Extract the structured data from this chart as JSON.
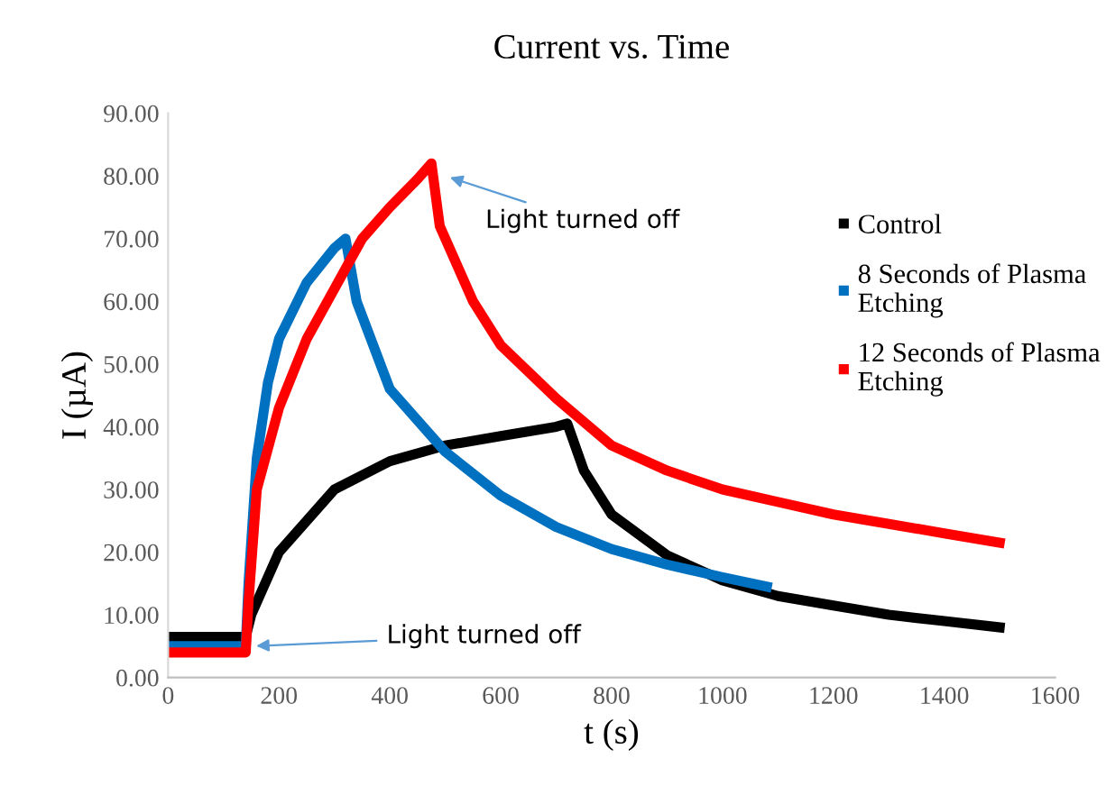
{
  "chart_data": {
    "type": "line",
    "title": "Current vs. Time",
    "xlabel": "t (s)",
    "ylabel": "I (µA)",
    "xlim": [
      0,
      1600
    ],
    "xticks": [
      0,
      200,
      400,
      600,
      800,
      1000,
      1200,
      1400,
      1600
    ],
    "ylim": [
      0,
      90
    ],
    "yticks": [
      {
        "value": 0,
        "label": "0.00"
      },
      {
        "value": 10,
        "label": "10.00"
      },
      {
        "value": 20,
        "label": "20.00"
      },
      {
        "value": 30,
        "label": "30.00"
      },
      {
        "value": 40,
        "label": "40.00"
      },
      {
        "value": 50,
        "label": "50.00"
      },
      {
        "value": 60,
        "label": "60.00"
      },
      {
        "value": 70,
        "label": "70.00"
      },
      {
        "value": 80,
        "label": "80.00"
      },
      {
        "value": 90,
        "label": "90.00"
      }
    ],
    "grid": false,
    "legend": "right",
    "marker": "none",
    "line_style": "solid",
    "series": [
      {
        "name": "Control",
        "color": "#000000",
        "x": [
          0,
          140,
          150,
          200,
          300,
          400,
          500,
          600,
          700,
          720,
          750,
          800,
          900,
          1000,
          1100,
          1200,
          1300,
          1400,
          1500
        ],
        "values": [
          6.5,
          6.5,
          10,
          20,
          30,
          34.5,
          37,
          38.5,
          40,
          40.5,
          33,
          26,
          19.5,
          15.5,
          13,
          11.5,
          10,
          9,
          8
        ]
      },
      {
        "name": "8 Seconds of Plasma Etching",
        "color": "#0070c0",
        "x": [
          0,
          140,
          145,
          160,
          180,
          200,
          250,
          300,
          320,
          340,
          400,
          500,
          600,
          700,
          800,
          900,
          1000,
          1080
        ],
        "values": [
          5,
          5,
          15,
          35,
          47,
          54,
          63,
          68.5,
          70,
          60,
          46,
          36,
          29,
          24,
          20.5,
          18,
          16,
          14.5
        ]
      },
      {
        "name": "12 Seconds of Plasma Etching",
        "color": "#ff0000",
        "x": [
          0,
          140,
          145,
          160,
          200,
          250,
          300,
          350,
          400,
          450,
          475,
          490,
          550,
          600,
          700,
          720,
          800,
          900,
          1000,
          1100,
          1200,
          1300,
          1400,
          1500
        ],
        "values": [
          4,
          4,
          12,
          30,
          43,
          54,
          62,
          70,
          75,
          79.5,
          82,
          72,
          60,
          53,
          44.5,
          43,
          37,
          33,
          30,
          28,
          26,
          24.5,
          23,
          21.5
        ]
      }
    ],
    "annotations": [
      {
        "text": "Light turned off",
        "x": 500,
        "y": 80
      },
      {
        "text": "Light turned off",
        "x": 150,
        "y": 5
      }
    ]
  }
}
